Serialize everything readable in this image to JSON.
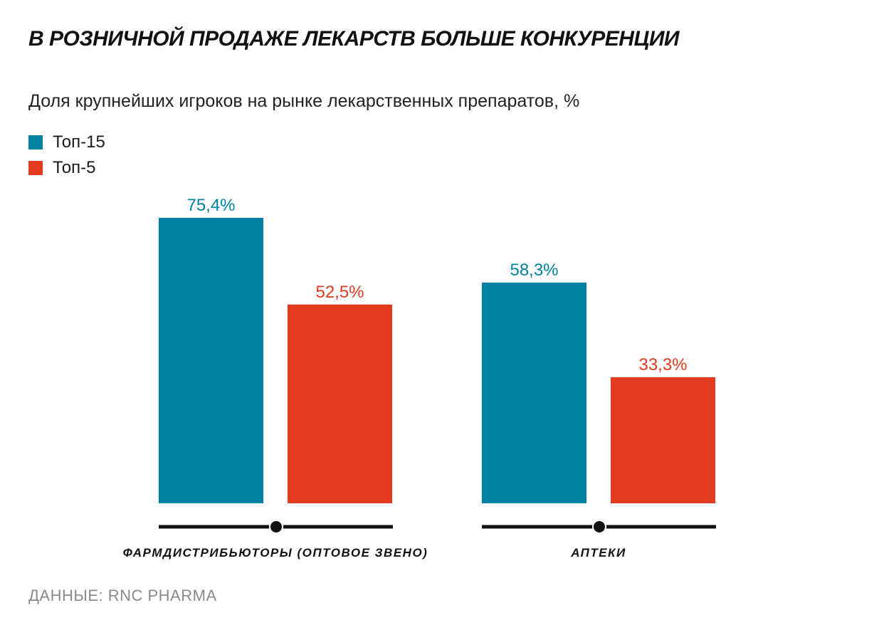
{
  "title": "В РОЗНИЧНОЙ ПРОДАЖЕ ЛЕКАРСТВ БОЛЬШЕ КОНКУРЕНЦИИ",
  "subtitle": "Доля крупнейших игроков на рынке лекарственных препаратов, %",
  "source": "ДАННЫЕ: RNC PHARMA",
  "legend": [
    {
      "label": "Топ-15",
      "color": "#0080a3"
    },
    {
      "label": "Топ-5",
      "color": "#e33b1f"
    }
  ],
  "chart_data": {
    "type": "bar",
    "categories": [
      "ФАРМДИСТРИБЬЮТОРЫ (ОПТОВОЕ ЗВЕНО)",
      "АПТЕКИ"
    ],
    "series": [
      {
        "name": "Топ-15",
        "values": [
          75.4,
          58.3
        ],
        "labels": [
          "75,4%",
          "58,3%"
        ],
        "color": "#0080a3"
      },
      {
        "name": "Топ-5",
        "values": [
          52.5,
          33.3
        ],
        "labels": [
          "52,5%",
          "33,3%"
        ],
        "color": "#e33b1f"
      }
    ],
    "ylim": [
      0,
      75.4
    ],
    "grid": false,
    "legend_position": "top-left"
  }
}
